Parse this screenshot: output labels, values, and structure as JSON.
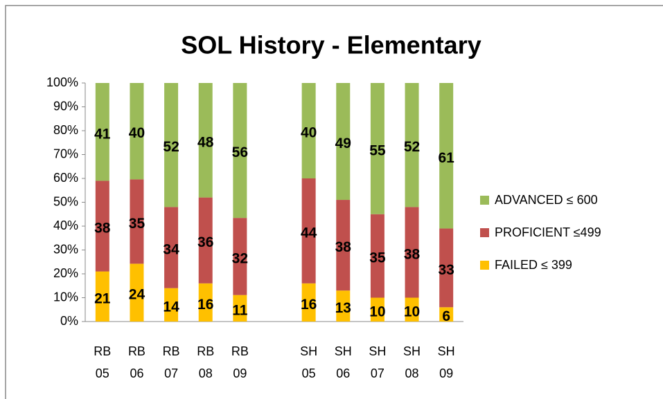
{
  "chart_data": {
    "type": "bar",
    "stacked": "percent",
    "title": "SOL History - Elementary",
    "categories": [
      "RB\n05",
      "RB\n06",
      "RB\n07",
      "RB\n08",
      "RB\n09",
      null,
      "SH\n05",
      "SH\n06",
      "SH\n07",
      "SH\n08",
      "SH\n09"
    ],
    "series": [
      {
        "name": "FAILED ≤ 399",
        "color": "#ffc000",
        "values": [
          21,
          24,
          14,
          16,
          11,
          null,
          16,
          13,
          10,
          10,
          6
        ]
      },
      {
        "name": "PROFICIENT ≤499",
        "color": "#c0504d",
        "values": [
          38,
          35,
          34,
          36,
          32,
          null,
          44,
          38,
          35,
          38,
          33
        ]
      },
      {
        "name": "ADVANCED ≤ 600",
        "color": "#9bbb59",
        "values": [
          41,
          40,
          52,
          48,
          56,
          null,
          40,
          49,
          55,
          52,
          61
        ]
      }
    ],
    "ylim": [
      0,
      100
    ],
    "yticks": [
      {
        "value": 0,
        "label": "0%"
      },
      {
        "value": 10,
        "label": "10%"
      },
      {
        "value": 20,
        "label": "20%"
      },
      {
        "value": 30,
        "label": "30%"
      },
      {
        "value": 40,
        "label": "40%"
      },
      {
        "value": 50,
        "label": "50%"
      },
      {
        "value": 60,
        "label": "60%"
      },
      {
        "value": 70,
        "label": "70%"
      },
      {
        "value": 80,
        "label": "80%"
      },
      {
        "value": 90,
        "label": "90%"
      },
      {
        "value": 100,
        "label": "100%"
      }
    ],
    "legend": "right"
  }
}
